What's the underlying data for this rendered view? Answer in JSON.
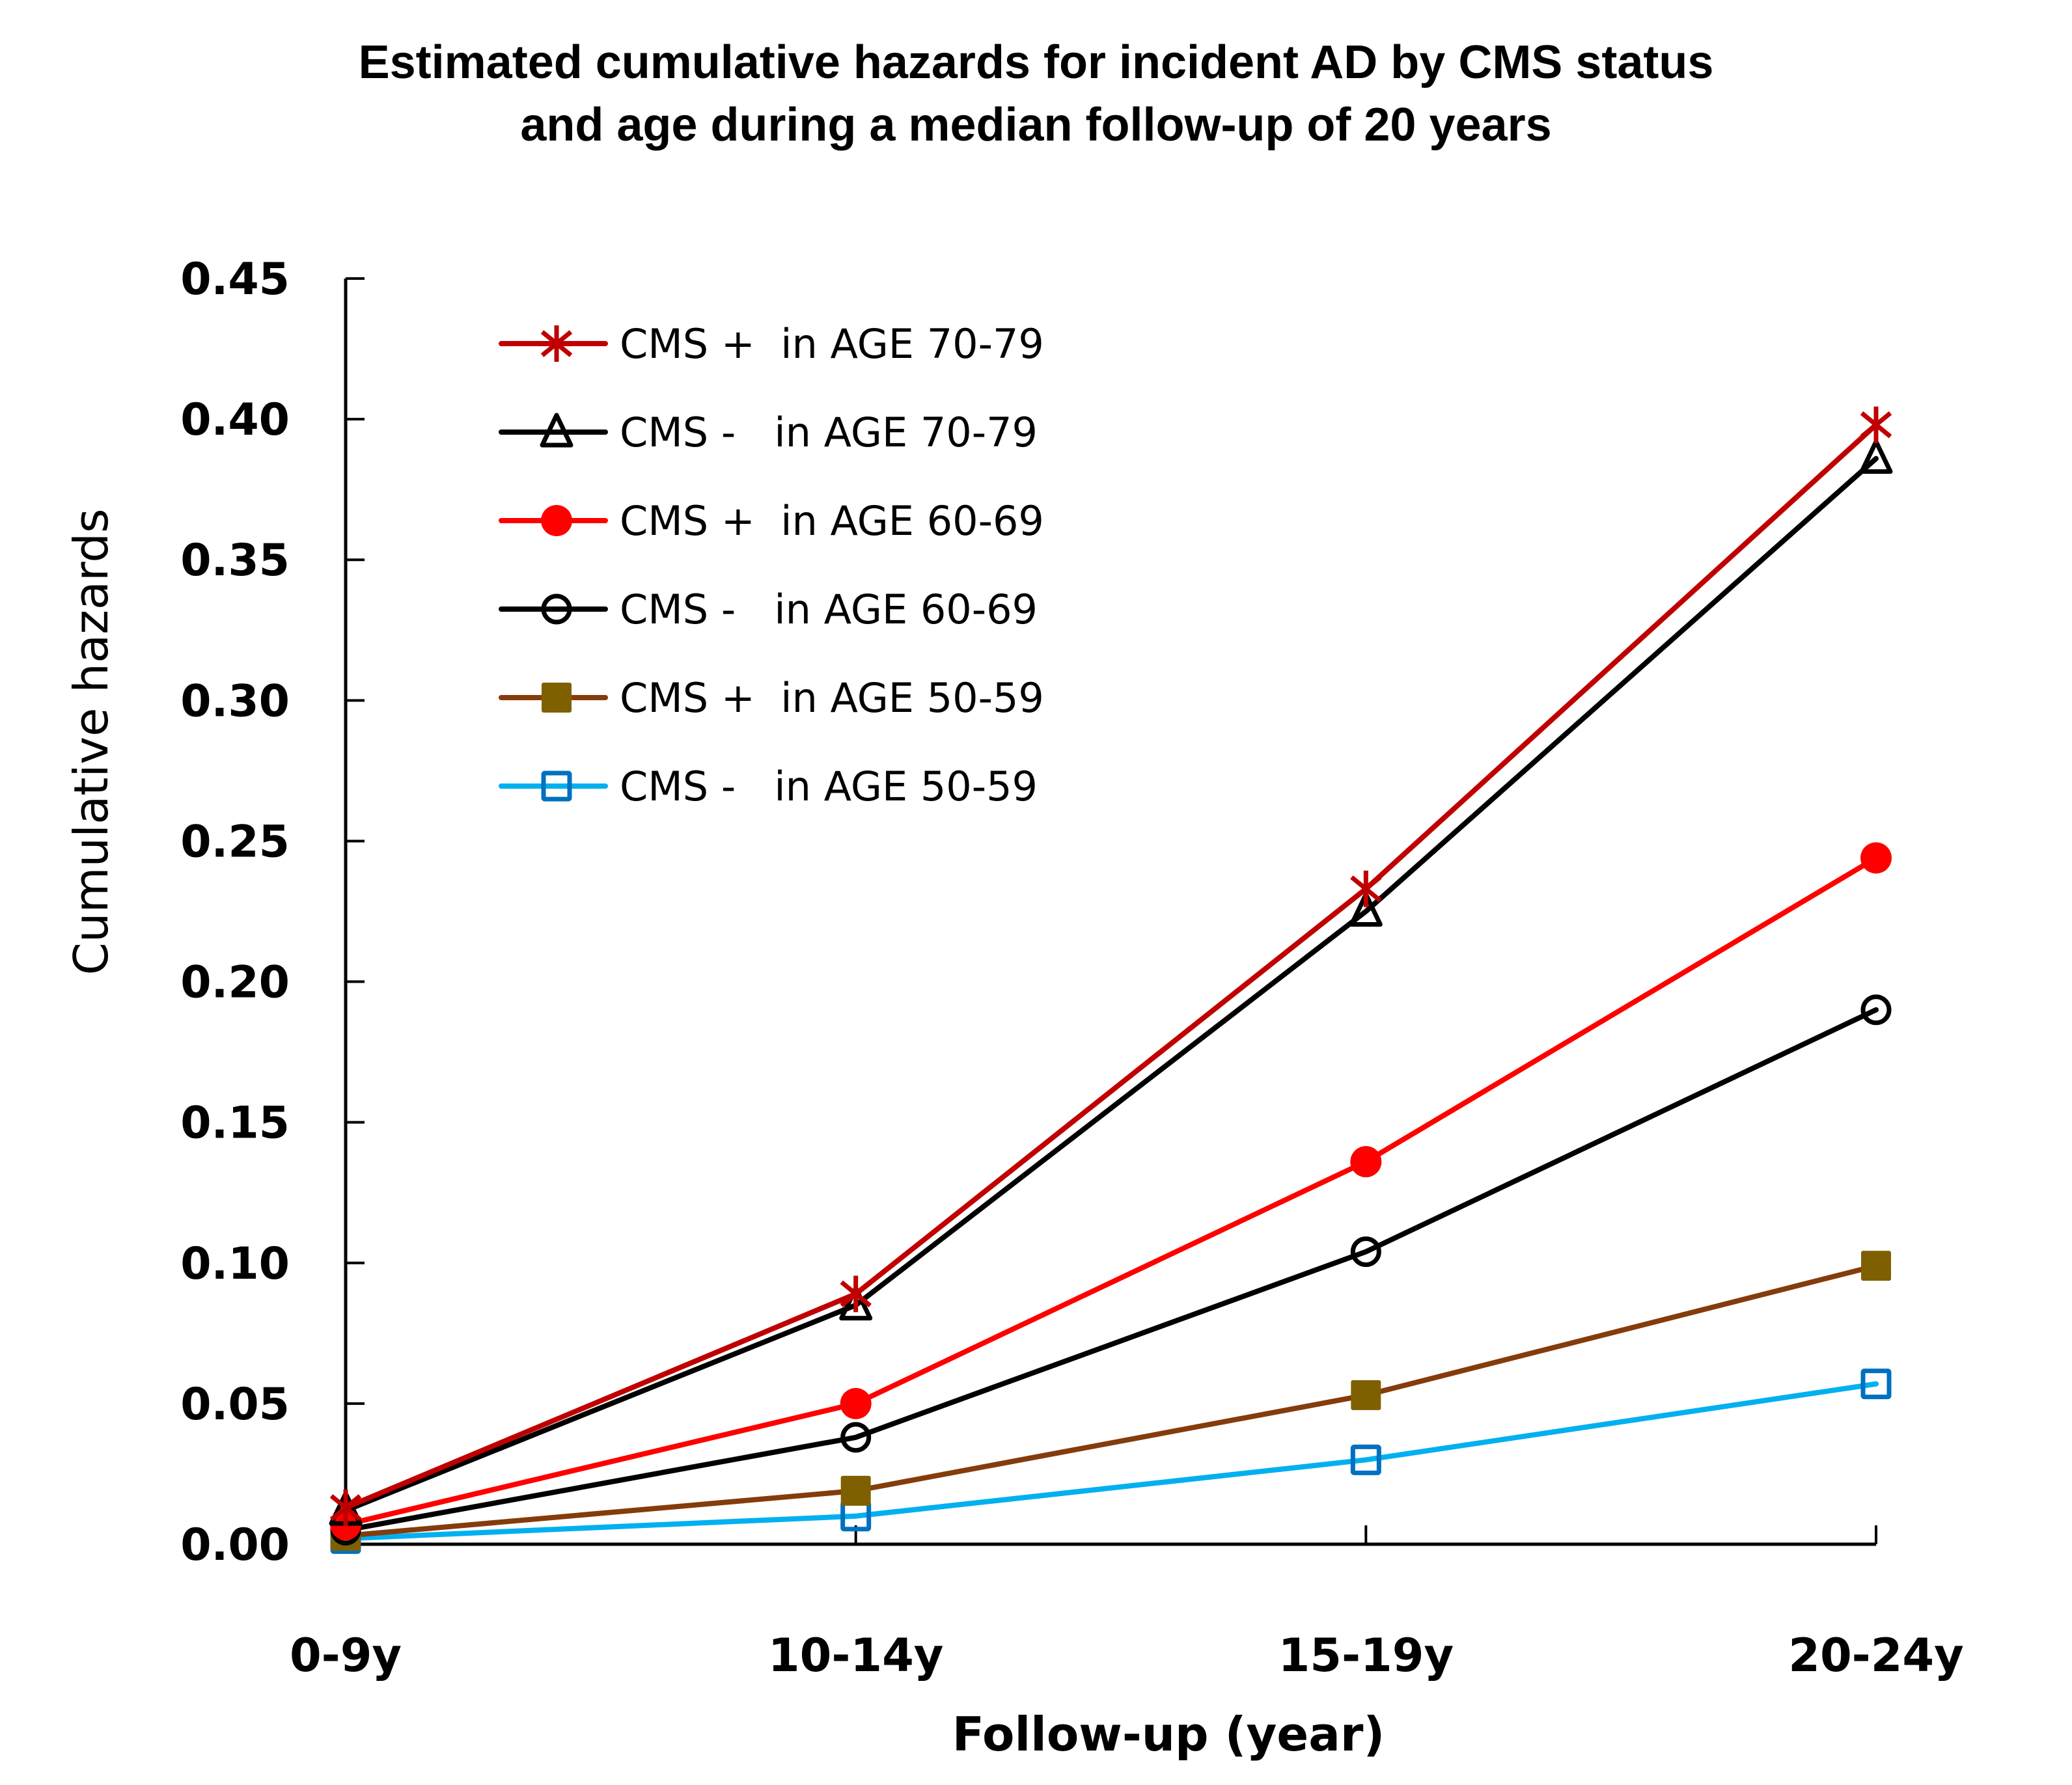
{
  "chart_data": {
    "type": "line",
    "title_lines": [
      "Estimated cumulative hazards for incident AD by CMS status",
      "and age during a median follow-up of 20 years"
    ],
    "xlabel": "Follow-up (year)",
    "ylabel": "Cumulative hazards",
    "categories": [
      "0-9y",
      "10-14y",
      "15-19y",
      "20-24y"
    ],
    "ylim": [
      0,
      0.45
    ],
    "yticks": [
      "0.00",
      "0.05",
      "0.10",
      "0.15",
      "0.20",
      "0.25",
      "0.30",
      "0.35",
      "0.40",
      "0.45"
    ],
    "grid": false,
    "legend_position": "top-left",
    "series": [
      {
        "name": "CMS +  in AGE 70-79",
        "line_color": "#C00000",
        "marker": "asterisk",
        "marker_color": "#C00000",
        "values": [
          0.013,
          0.089,
          0.233,
          0.398
        ]
      },
      {
        "name": "CMS -   in AGE 70-79",
        "line_color": "#000000",
        "marker": "open-triangle",
        "marker_color": "#000000",
        "values": [
          0.012,
          0.085,
          0.225,
          0.386
        ]
      },
      {
        "name": "CMS +  in AGE 60-69",
        "line_color": "#FF0000",
        "marker": "filled-circle",
        "marker_color": "#FF0000",
        "values": [
          0.007,
          0.05,
          0.136,
          0.244
        ]
      },
      {
        "name": "CMS -   in AGE 60-69",
        "line_color": "#000000",
        "marker": "open-circle",
        "marker_color": "#000000",
        "values": [
          0.005,
          0.038,
          0.104,
          0.19
        ]
      },
      {
        "name": "CMS +  in AGE 50-59",
        "line_color": "#843C0C",
        "marker": "filled-square",
        "marker_color": "#7F6000",
        "values": [
          0.003,
          0.019,
          0.053,
          0.099
        ]
      },
      {
        "name": "CMS -   in AGE 50-59",
        "line_color": "#00B0F0",
        "marker": "open-square",
        "marker_color": "#0070C0",
        "values": [
          0.002,
          0.01,
          0.03,
          0.057
        ]
      }
    ]
  }
}
